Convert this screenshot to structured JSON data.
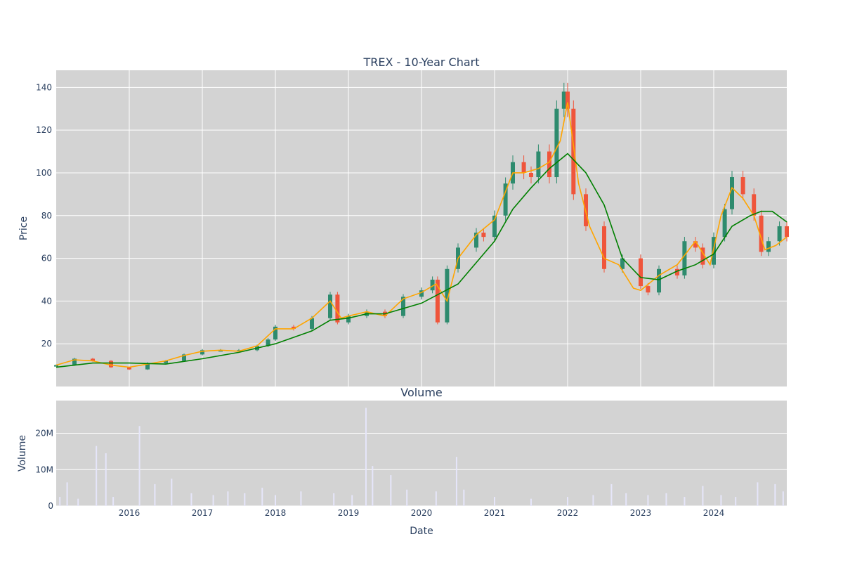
{
  "title": "TREX - 10-Year Chart",
  "subplot_title": "Volume",
  "colors": {
    "plot_bg": "#d3d3d3",
    "grid": "#ffffff",
    "text": "#2a3f5f",
    "candle_up": "#2e8b6e",
    "candle_down": "#ef553b",
    "ma_short": "#ffa500",
    "ma_long": "#008000",
    "volume": "#e6e6fa"
  },
  "chart_data": [
    {
      "type": "line",
      "name": "price",
      "title": "TREX - 10-Year Chart",
      "ylabel": "Price",
      "xlabel": "",
      "x_range": [
        2015.0,
        2025.0
      ],
      "ylim": [
        0,
        148
      ],
      "yticks": [
        20,
        40,
        60,
        80,
        100,
        120,
        140
      ],
      "grid": true,
      "candlestick": {
        "x": [
          2015.0,
          2015.25,
          2015.5,
          2015.75,
          2016.0,
          2016.25,
          2016.5,
          2016.75,
          2017.0,
          2017.25,
          2017.5,
          2017.75,
          2017.9,
          2018.0,
          2018.25,
          2018.5,
          2018.75,
          2018.85,
          2019.0,
          2019.25,
          2019.5,
          2019.75,
          2020.0,
          2020.15,
          2020.22,
          2020.35,
          2020.5,
          2020.75,
          2020.85,
          2021.0,
          2021.15,
          2021.25,
          2021.4,
          2021.5,
          2021.6,
          2021.75,
          2021.85,
          2021.95,
          2022.0,
          2022.08,
          2022.25,
          2022.5,
          2022.75,
          2023.0,
          2023.1,
          2023.25,
          2023.5,
          2023.6,
          2023.75,
          2023.85,
          2024.0,
          2024.15,
          2024.25,
          2024.4,
          2024.55,
          2024.65,
          2024.75,
          2024.9,
          2025.0
        ],
        "close": [
          10,
          13,
          12,
          9,
          8,
          11,
          12,
          15,
          17,
          17,
          17,
          19,
          22,
          28,
          27,
          32,
          43,
          30,
          33,
          35,
          33,
          42,
          45,
          50,
          30,
          55,
          65,
          72,
          70,
          80,
          95,
          105,
          100,
          98,
          110,
          98,
          130,
          138,
          130,
          90,
          75,
          55,
          60,
          47,
          44,
          55,
          52,
          68,
          65,
          57,
          70,
          83,
          98,
          90,
          80,
          63,
          68,
          75,
          70
        ]
      },
      "series": [
        {
          "name": "",
          "color": "#ffa500",
          "x": [
            2015.0,
            2015.25,
            2015.5,
            2015.75,
            2016.0,
            2016.25,
            2016.5,
            2016.75,
            2017.0,
            2017.25,
            2017.5,
            2017.75,
            2018.0,
            2018.25,
            2018.5,
            2018.75,
            2018.9,
            2019.0,
            2019.25,
            2019.5,
            2019.75,
            2020.0,
            2020.2,
            2020.35,
            2020.5,
            2020.75,
            2021.0,
            2021.25,
            2021.4,
            2021.6,
            2021.75,
            2021.9,
            2022.0,
            2022.15,
            2022.3,
            2022.5,
            2022.7,
            2022.9,
            2023.0,
            2023.25,
            2023.5,
            2023.75,
            2023.95,
            2024.1,
            2024.25,
            2024.4,
            2024.55,
            2024.7,
            2024.85,
            2025.0
          ],
          "y": [
            10,
            12.5,
            12,
            10,
            9,
            10.5,
            12,
            14.5,
            16.5,
            17,
            16.5,
            19,
            27,
            27,
            32,
            40,
            32,
            33,
            35,
            33,
            41,
            44,
            48,
            40,
            60,
            71,
            78,
            100,
            100,
            102,
            105,
            115,
            133,
            95,
            75,
            60,
            57,
            46,
            45,
            52,
            57,
            68,
            57,
            80,
            93,
            88,
            80,
            64,
            66,
            70
          ]
        },
        {
          "name": "",
          "color": "#008000",
          "x": [
            2015.0,
            2015.5,
            2016.0,
            2016.5,
            2017.0,
            2017.5,
            2018.0,
            2018.5,
            2018.75,
            2019.0,
            2019.25,
            2019.5,
            2020.0,
            2020.5,
            2020.75,
            2021.0,
            2021.25,
            2021.5,
            2021.75,
            2022.0,
            2022.25,
            2022.5,
            2022.75,
            2023.0,
            2023.25,
            2023.5,
            2023.75,
            2024.0,
            2024.25,
            2024.5,
            2024.65,
            2024.8,
            2025.0
          ],
          "y": [
            9,
            11,
            11,
            10.5,
            13,
            16,
            20,
            26,
            31,
            32,
            34,
            34,
            39,
            48,
            58,
            68,
            83,
            93,
            102,
            109,
            100,
            85,
            60,
            51,
            50,
            54,
            57,
            62,
            75,
            80,
            82,
            82,
            77
          ]
        }
      ]
    },
    {
      "type": "bar",
      "name": "volume",
      "title": "Volume",
      "ylabel": "Volume",
      "xlabel": "Date",
      "x_range": [
        2015.0,
        2025.0
      ],
      "ylim": [
        0,
        29000000
      ],
      "yticks": [
        0,
        10000000,
        20000000
      ],
      "ytick_labels": [
        "0",
        "10M",
        "20M"
      ],
      "xtick_values": [
        2016,
        2017,
        2018,
        2019,
        2020,
        2021,
        2022,
        2023,
        2024
      ],
      "xtick_labels": [
        "2016",
        "2017",
        "2018",
        "2019",
        "2020",
        "2021",
        "2022",
        "2023",
        "2024"
      ],
      "grid": true,
      "x": [
        2015.05,
        2015.15,
        2015.3,
        2015.55,
        2015.68,
        2015.78,
        2016.14,
        2016.35,
        2016.58,
        2016.85,
        2017.15,
        2017.35,
        2017.58,
        2017.82,
        2018.0,
        2018.35,
        2018.8,
        2019.05,
        2019.24,
        2019.33,
        2019.58,
        2019.8,
        2020.2,
        2020.48,
        2020.58,
        2021.0,
        2021.5,
        2022.0,
        2022.35,
        2022.6,
        2022.8,
        2023.1,
        2023.35,
        2023.6,
        2023.85,
        2024.1,
        2024.3,
        2024.6,
        2024.84,
        2024.95
      ],
      "values": [
        2500000,
        6500000,
        2000000,
        16500000,
        14500000,
        2500000,
        22000000,
        6000000,
        7500000,
        3500000,
        3000000,
        4000000,
        3500000,
        5000000,
        3000000,
        4000000,
        3500000,
        3000000,
        27000000,
        11000000,
        8500000,
        4500000,
        4000000,
        13500000,
        4500000,
        2500000,
        2000000,
        2500000,
        3000000,
        6000000,
        3500000,
        3000000,
        3500000,
        2500000,
        5500000,
        3000000,
        2500000,
        6500000,
        6000000,
        4000000
      ]
    }
  ]
}
